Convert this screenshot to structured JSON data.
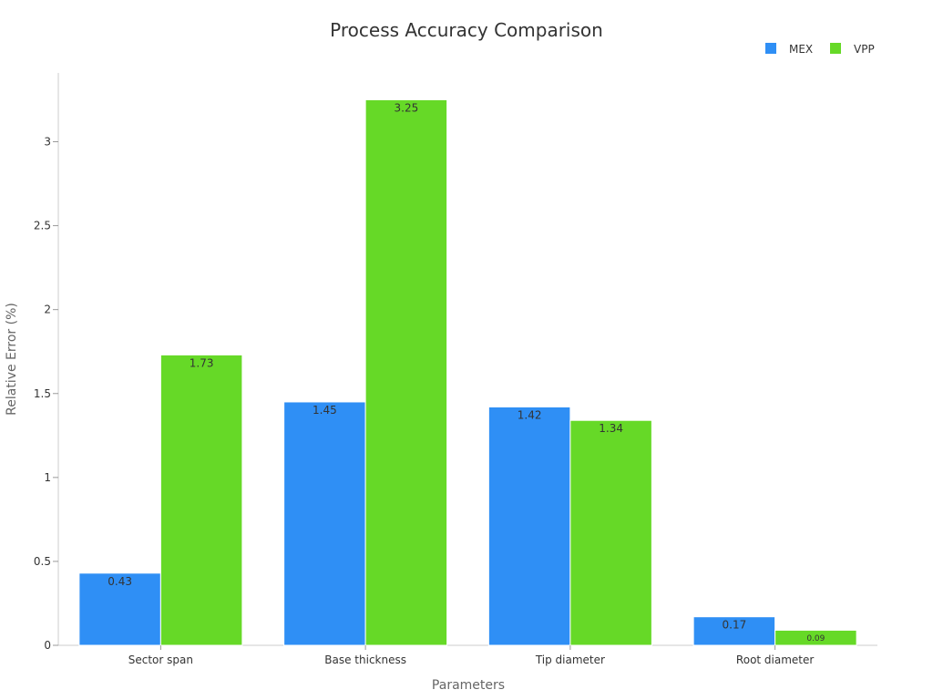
{
  "chart_data": {
    "type": "bar",
    "title": "Process Accuracy Comparison",
    "xlabel": "Parameters",
    "ylabel": "Relative Error (%)",
    "categories": [
      "Sector span",
      "Base thickness",
      "Tip diameter",
      "Root diameter"
    ],
    "series": [
      {
        "name": "MEX",
        "color": "#2f8ff5",
        "values": [
          0.43,
          1.45,
          1.42,
          0.17
        ],
        "labels": [
          "0.43",
          "1.45",
          "1.42",
          "0.17"
        ]
      },
      {
        "name": "VPP",
        "color": "#66d927",
        "values": [
          1.73,
          3.25,
          1.34,
          0.09
        ],
        "labels": [
          "1.73",
          "3.25",
          "1.34",
          "0.09"
        ]
      }
    ],
    "ylim": [
      0,
      3.41
    ],
    "yticks": [
      0,
      0.5,
      1,
      1.5,
      2,
      2.5,
      3
    ],
    "ytick_labels": [
      "0",
      "0.5",
      "1",
      "1.5",
      "2",
      "2.5",
      "3"
    ],
    "legend_position": "top-right",
    "grid": false
  }
}
